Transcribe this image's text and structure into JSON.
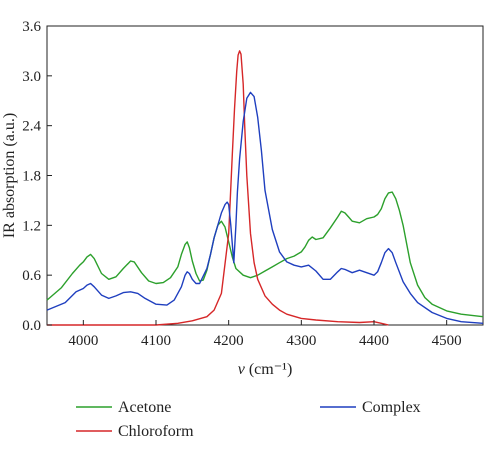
{
  "chart_data": {
    "type": "line",
    "xlabel": "ν (cm⁻¹)",
    "ylabel": "IR absorption (a.u.)",
    "xlim": [
      3950,
      4550
    ],
    "ylim": [
      0,
      3.6
    ],
    "xticks": [
      "4000",
      "4100",
      "4200",
      "4300",
      "4400",
      "4500"
    ],
    "yticks": [
      "0.0",
      "0.6",
      "1.2",
      "1.8",
      "2.4",
      "3.0",
      "3.6"
    ],
    "legend_placement": "bottom",
    "series": [
      {
        "name": "Acetone",
        "color": "#2ca02c",
        "x": [
          3950,
          3970,
          3985,
          3995,
          4000,
          4005,
          4010,
          4015,
          4025,
          4035,
          4045,
          4055,
          4065,
          4070,
          4080,
          4090,
          4100,
          4110,
          4120,
          4130,
          4135,
          4140,
          4143,
          4146,
          4150,
          4155,
          4160,
          4165,
          4170,
          4175,
          4180,
          4185,
          4190,
          4195,
          4200,
          4205,
          4210,
          4220,
          4230,
          4240,
          4250,
          4260,
          4270,
          4280,
          4290,
          4300,
          4305,
          4310,
          4315,
          4320,
          4330,
          4340,
          4350,
          4355,
          4360,
          4365,
          4370,
          4380,
          4390,
          4400,
          4405,
          4410,
          4415,
          4420,
          4425,
          4430,
          4435,
          4440,
          4450,
          4460,
          4470,
          4480,
          4500,
          4520,
          4550
        ],
        "y": [
          0.3,
          0.45,
          0.62,
          0.72,
          0.76,
          0.82,
          0.85,
          0.8,
          0.62,
          0.55,
          0.58,
          0.68,
          0.77,
          0.76,
          0.63,
          0.53,
          0.5,
          0.51,
          0.57,
          0.7,
          0.85,
          0.97,
          1.0,
          0.93,
          0.77,
          0.62,
          0.53,
          0.54,
          0.66,
          0.85,
          1.05,
          1.2,
          1.25,
          1.18,
          1.0,
          0.82,
          0.68,
          0.6,
          0.57,
          0.6,
          0.65,
          0.7,
          0.75,
          0.8,
          0.83,
          0.88,
          0.94,
          1.02,
          1.06,
          1.03,
          1.05,
          1.17,
          1.3,
          1.37,
          1.35,
          1.3,
          1.25,
          1.23,
          1.28,
          1.3,
          1.33,
          1.4,
          1.52,
          1.59,
          1.6,
          1.52,
          1.38,
          1.2,
          0.75,
          0.48,
          0.33,
          0.25,
          0.17,
          0.13,
          0.1
        ]
      },
      {
        "name": "Chloroform",
        "color": "#d62728",
        "x": [
          3950,
          4000,
          4050,
          4100,
          4130,
          4150,
          4170,
          4180,
          4190,
          4200,
          4205,
          4208,
          4211,
          4213,
          4215,
          4217,
          4220,
          4222,
          4225,
          4230,
          4235,
          4240,
          4250,
          4260,
          4270,
          4280,
          4300,
          4320,
          4350,
          4380,
          4400,
          4410,
          4420
        ],
        "y": [
          0.0,
          0.0,
          0.0,
          0.0,
          0.02,
          0.05,
          0.1,
          0.18,
          0.38,
          1.1,
          2.05,
          2.6,
          3.05,
          3.25,
          3.3,
          3.26,
          2.9,
          2.4,
          1.8,
          1.1,
          0.75,
          0.55,
          0.35,
          0.25,
          0.18,
          0.13,
          0.08,
          0.06,
          0.04,
          0.03,
          0.04,
          0.02,
          0.0
        ]
      },
      {
        "name": "Complex",
        "color": "#1f3fbf",
        "x": [
          3950,
          3975,
          3990,
          4000,
          4005,
          4010,
          4015,
          4025,
          4035,
          4045,
          4055,
          4065,
          4075,
          4085,
          4100,
          4115,
          4125,
          4135,
          4140,
          4143,
          4146,
          4150,
          4155,
          4160,
          4170,
          4175,
          4180,
          4185,
          4190,
          4195,
          4198,
          4200,
          4203,
          4207,
          4210,
          4212,
          4215,
          4220,
          4225,
          4230,
          4235,
          4240,
          4245,
          4250,
          4260,
          4270,
          4280,
          4290,
          4300,
          4310,
          4320,
          4330,
          4340,
          4350,
          4355,
          4360,
          4370,
          4380,
          4390,
          4400,
          4405,
          4410,
          4415,
          4420,
          4425,
          4430,
          4440,
          4450,
          4460,
          4480,
          4500,
          4520,
          4550
        ],
        "y": [
          0.18,
          0.27,
          0.4,
          0.44,
          0.48,
          0.5,
          0.46,
          0.36,
          0.32,
          0.35,
          0.39,
          0.4,
          0.38,
          0.32,
          0.25,
          0.24,
          0.3,
          0.46,
          0.6,
          0.64,
          0.62,
          0.55,
          0.5,
          0.5,
          0.68,
          0.85,
          1.05,
          1.2,
          1.35,
          1.45,
          1.48,
          1.45,
          1.2,
          0.75,
          1.2,
          1.6,
          2.0,
          2.45,
          2.73,
          2.8,
          2.75,
          2.5,
          2.1,
          1.62,
          1.15,
          0.88,
          0.76,
          0.72,
          0.7,
          0.72,
          0.65,
          0.55,
          0.55,
          0.64,
          0.68,
          0.67,
          0.63,
          0.66,
          0.63,
          0.6,
          0.64,
          0.75,
          0.87,
          0.92,
          0.87,
          0.75,
          0.52,
          0.38,
          0.27,
          0.15,
          0.08,
          0.04,
          0.02
        ]
      }
    ]
  }
}
